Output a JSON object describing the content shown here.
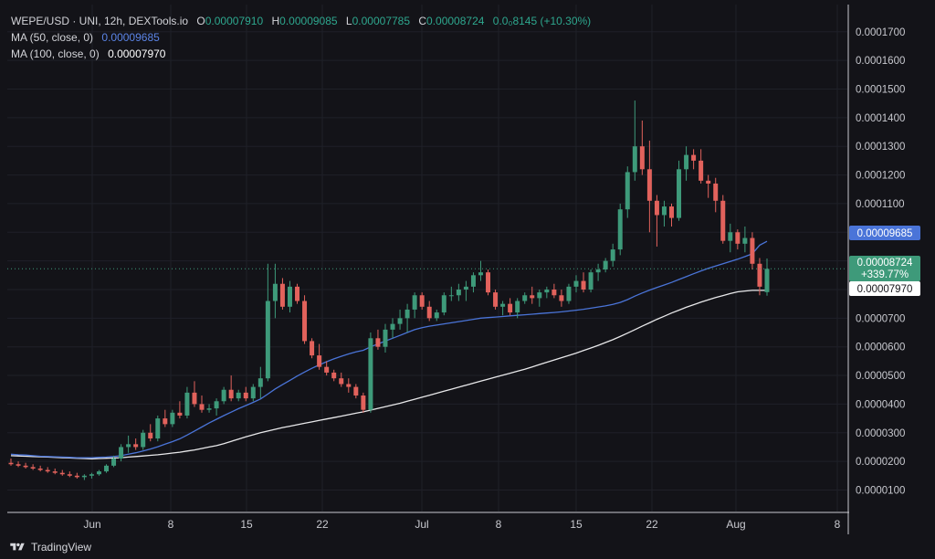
{
  "legend": {
    "symbol": "WEPE/USD · UNI, 12h, DEXTools.io",
    "o_label": "O",
    "o": "0.00007910",
    "h_label": "H",
    "h": "0.00009085",
    "l_label": "L",
    "l": "0.00007785",
    "c_label": "C",
    "c": "0.00008724",
    "change": "0.0₀8145 (+10.30%)",
    "ma50_label": "MA (50, close, 0)",
    "ma50": "0.00009685",
    "ma100_label": "MA (100, close, 0)",
    "ma100": "0.00007970"
  },
  "price_tags": {
    "ma50": "0.00009685",
    "last": "0.00008724",
    "last_change": "+339.77%",
    "ma100": "0.00007970"
  },
  "branding": {
    "name": "TradingView"
  },
  "colors": {
    "up": "#3e9a7a",
    "down": "#e2625c",
    "ma50": "#4a74d8",
    "ma100": "#e8e8ea",
    "bg": "#131318",
    "grid": "#1f2028",
    "text": "#c8c9cf"
  },
  "chart_data": {
    "type": "candlestick",
    "x_ticks": [
      "Jun",
      "8",
      "15",
      "22",
      "Jul",
      "8",
      "15",
      "22",
      "Aug",
      "8"
    ],
    "y_ticks": [
      "0.0001700",
      "0.0001600",
      "0.0001500",
      "0.0001400",
      "0.0001300",
      "0.0001200",
      "0.0001100",
      "0.0001000",
      "0.0000900",
      "0.0000800",
      "0.0000700",
      "0.0000600",
      "0.0000500",
      "0.0000400",
      "0.0000300",
      "0.0000200",
      "0.0000100"
    ],
    "ylim": [
      2.5e-06,
      0.0001795
    ],
    "candles": [
      [
        1.95,
        2.1,
        1.85,
        1.9
      ],
      [
        1.9,
        2.0,
        1.8,
        1.85
      ],
      [
        1.85,
        1.95,
        1.75,
        1.8
      ],
      [
        1.8,
        1.9,
        1.7,
        1.75
      ],
      [
        1.75,
        1.85,
        1.65,
        1.7
      ],
      [
        1.7,
        1.8,
        1.6,
        1.65
      ],
      [
        1.65,
        1.75,
        1.55,
        1.6
      ],
      [
        1.6,
        1.7,
        1.5,
        1.55
      ],
      [
        1.55,
        1.65,
        1.45,
        1.5
      ],
      [
        1.5,
        1.6,
        1.4,
        1.45
      ],
      [
        1.45,
        1.55,
        1.35,
        1.5
      ],
      [
        1.5,
        1.6,
        1.4,
        1.55
      ],
      [
        1.55,
        1.7,
        1.5,
        1.65
      ],
      [
        1.65,
        1.9,
        1.6,
        1.85
      ],
      [
        1.85,
        2.2,
        1.8,
        2.1
      ],
      [
        2.1,
        2.6,
        2.0,
        2.5
      ],
      [
        2.5,
        2.9,
        2.3,
        2.6
      ],
      [
        2.6,
        2.8,
        2.4,
        2.5
      ],
      [
        2.5,
        3.1,
        2.4,
        3.0
      ],
      [
        3.0,
        3.3,
        2.7,
        2.8
      ],
      [
        2.8,
        3.6,
        2.7,
        3.5
      ],
      [
        3.5,
        3.8,
        3.2,
        3.3
      ],
      [
        3.3,
        3.8,
        3.2,
        3.7
      ],
      [
        3.7,
        4.1,
        3.5,
        3.6
      ],
      [
        3.6,
        4.6,
        3.5,
        4.4
      ],
      [
        4.4,
        4.8,
        3.9,
        4.0
      ],
      [
        4.0,
        4.3,
        3.7,
        3.8
      ],
      [
        3.8,
        4.0,
        3.7,
        3.85
      ],
      [
        3.85,
        4.2,
        3.6,
        4.1
      ],
      [
        4.1,
        4.6,
        4.0,
        4.5
      ],
      [
        4.5,
        5.0,
        4.1,
        4.2
      ],
      [
        4.2,
        4.5,
        4.1,
        4.4
      ],
      [
        4.4,
        4.6,
        4.1,
        4.2
      ],
      [
        4.2,
        4.7,
        4.1,
        4.6
      ],
      [
        4.6,
        5.3,
        4.2,
        4.9
      ],
      [
        4.9,
        8.9,
        4.8,
        7.6
      ],
      [
        7.6,
        8.9,
        7.0,
        8.2
      ],
      [
        8.2,
        8.4,
        7.3,
        7.4
      ],
      [
        7.4,
        8.3,
        7.2,
        8.1
      ],
      [
        8.1,
        8.2,
        7.5,
        7.6
      ],
      [
        7.6,
        7.8,
        6.1,
        6.2
      ],
      [
        6.2,
        6.3,
        5.6,
        5.7
      ],
      [
        5.7,
        6.1,
        5.2,
        5.3
      ],
      [
        5.3,
        5.5,
        5.0,
        5.1
      ],
      [
        5.1,
        5.2,
        4.8,
        4.9
      ],
      [
        4.9,
        5.1,
        4.6,
        4.7
      ],
      [
        4.7,
        4.9,
        4.4,
        4.6
      ],
      [
        4.6,
        4.7,
        4.2,
        4.3
      ],
      [
        4.3,
        4.4,
        3.7,
        3.8
      ],
      [
        3.8,
        6.5,
        3.7,
        6.3
      ],
      [
        6.3,
        6.6,
        5.9,
        6.0
      ],
      [
        6.0,
        6.8,
        5.8,
        6.6
      ],
      [
        6.6,
        7.0,
        6.3,
        6.8
      ],
      [
        6.8,
        7.3,
        6.6,
        7.0
      ],
      [
        7.0,
        7.5,
        6.5,
        7.3
      ],
      [
        7.3,
        7.9,
        7.0,
        7.8
      ],
      [
        7.8,
        7.9,
        7.3,
        7.4
      ],
      [
        7.4,
        7.6,
        6.9,
        7.0
      ],
      [
        7.0,
        7.3,
        6.9,
        7.2
      ],
      [
        7.2,
        7.9,
        7.1,
        7.8
      ],
      [
        7.8,
        8.1,
        7.6,
        7.8
      ],
      [
        7.8,
        8.2,
        7.6,
        8.0
      ],
      [
        8.0,
        8.3,
        7.6,
        8.1
      ],
      [
        8.1,
        8.6,
        7.9,
        8.5
      ],
      [
        8.5,
        9.0,
        8.3,
        8.6
      ],
      [
        8.6,
        8.7,
        7.8,
        7.9
      ],
      [
        7.9,
        8.0,
        7.3,
        7.4
      ],
      [
        7.4,
        7.6,
        7.1,
        7.5
      ],
      [
        7.5,
        7.7,
        7.1,
        7.2
      ],
      [
        7.2,
        7.7,
        7.0,
        7.6
      ],
      [
        7.6,
        7.9,
        7.5,
        7.8
      ],
      [
        7.8,
        8.1,
        7.5,
        7.7
      ],
      [
        7.7,
        8.0,
        7.4,
        7.9
      ],
      [
        7.9,
        8.1,
        7.7,
        8.0
      ],
      [
        8.0,
        8.2,
        7.7,
        7.8
      ],
      [
        7.8,
        8.0,
        7.4,
        7.6
      ],
      [
        7.6,
        8.2,
        7.5,
        8.1
      ],
      [
        8.1,
        8.5,
        7.9,
        8.3
      ],
      [
        8.3,
        8.6,
        7.9,
        8.0
      ],
      [
        8.0,
        8.7,
        7.9,
        8.6
      ],
      [
        8.6,
        8.9,
        8.3,
        8.7
      ],
      [
        8.7,
        9.1,
        8.6,
        9.0
      ],
      [
        9.0,
        9.6,
        8.8,
        9.4
      ],
      [
        9.4,
        11.0,
        9.2,
        10.8
      ],
      [
        10.8,
        12.3,
        10.5,
        12.1
      ],
      [
        12.1,
        14.6,
        11.8,
        13.0
      ],
      [
        13.0,
        13.9,
        12.0,
        12.2
      ],
      [
        12.2,
        13.2,
        10.0,
        11.1
      ],
      [
        11.1,
        11.3,
        9.5,
        10.6
      ],
      [
        10.6,
        11.1,
        10.2,
        10.9
      ],
      [
        10.9,
        11.0,
        10.2,
        10.5
      ],
      [
        10.5,
        12.5,
        10.4,
        12.2
      ],
      [
        12.2,
        13.0,
        11.8,
        12.7
      ],
      [
        12.7,
        12.9,
        12.2,
        12.5
      ],
      [
        12.5,
        12.9,
        11.7,
        11.8
      ],
      [
        11.8,
        12.0,
        11.2,
        11.7
      ],
      [
        11.7,
        11.9,
        10.7,
        11.1
      ],
      [
        11.1,
        11.3,
        9.6,
        9.7
      ],
      [
        9.7,
        10.3,
        9.3,
        10.0
      ],
      [
        10.0,
        10.1,
        9.4,
        9.6
      ],
      [
        9.6,
        10.2,
        9.3,
        9.8
      ],
      [
        9.8,
        10.0,
        8.7,
        8.9
      ],
      [
        8.9,
        9.1,
        7.8,
        8.1
      ],
      [
        7.91,
        9.085,
        7.785,
        8.724
      ]
    ],
    "ma50": [
      2.25,
      2.23,
      2.22,
      2.2,
      2.18,
      2.17,
      2.16,
      2.15,
      2.14,
      2.13,
      2.13,
      2.13,
      2.14,
      2.15,
      2.17,
      2.2,
      2.25,
      2.3,
      2.36,
      2.43,
      2.51,
      2.6,
      2.69,
      2.79,
      2.92,
      3.06,
      3.2,
      3.34,
      3.47,
      3.6,
      3.72,
      3.84,
      3.95,
      4.06,
      4.18,
      4.35,
      4.53,
      4.68,
      4.83,
      4.98,
      5.12,
      5.25,
      5.37,
      5.48,
      5.58,
      5.67,
      5.75,
      5.82,
      5.88,
      6.0,
      6.1,
      6.2,
      6.3,
      6.4,
      6.5,
      6.6,
      6.67,
      6.72,
      6.76,
      6.8,
      6.84,
      6.88,
      6.92,
      6.96,
      7.0,
      7.02,
      7.04,
      7.06,
      7.08,
      7.1,
      7.12,
      7.14,
      7.16,
      7.18,
      7.2,
      7.22,
      7.25,
      7.28,
      7.31,
      7.35,
      7.39,
      7.43,
      7.48,
      7.55,
      7.65,
      7.77,
      7.88,
      7.98,
      8.07,
      8.16,
      8.25,
      8.35,
      8.45,
      8.55,
      8.65,
      8.74,
      8.82,
      8.9,
      8.98,
      9.06,
      9.15,
      9.25,
      9.55,
      9.685
    ],
    "ma100": [
      2.2,
      2.19,
      2.18,
      2.17,
      2.16,
      2.15,
      2.14,
      2.13,
      2.12,
      2.11,
      2.1,
      2.09,
      2.1,
      2.11,
      2.12,
      2.13,
      2.15,
      2.17,
      2.19,
      2.21,
      2.23,
      2.26,
      2.29,
      2.32,
      2.36,
      2.4,
      2.45,
      2.5,
      2.55,
      2.62,
      2.7,
      2.78,
      2.86,
      2.93,
      3.0,
      3.06,
      3.12,
      3.18,
      3.23,
      3.28,
      3.33,
      3.38,
      3.43,
      3.48,
      3.53,
      3.58,
      3.63,
      3.68,
      3.73,
      3.79,
      3.85,
      3.91,
      3.97,
      4.03,
      4.1,
      4.17,
      4.24,
      4.31,
      4.38,
      4.45,
      4.52,
      4.59,
      4.66,
      4.73,
      4.8,
      4.87,
      4.94,
      5.01,
      5.08,
      5.15,
      5.22,
      5.3,
      5.38,
      5.46,
      5.54,
      5.62,
      5.7,
      5.78,
      5.87,
      5.96,
      6.05,
      6.15,
      6.25,
      6.36,
      6.48,
      6.6,
      6.72,
      6.84,
      6.96,
      7.07,
      7.18,
      7.28,
      7.38,
      7.47,
      7.56,
      7.64,
      7.72,
      7.79,
      7.86,
      7.92,
      7.95,
      7.97,
      7.97,
      7.97
    ],
    "last_close": 8.724
  }
}
